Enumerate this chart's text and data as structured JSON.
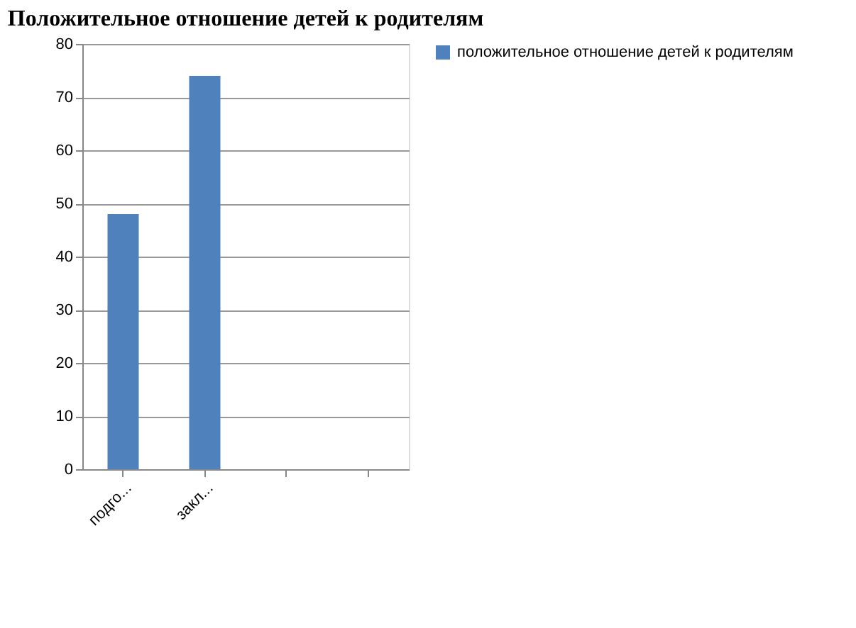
{
  "chart_data": {
    "type": "bar",
    "title": "Положительное отношение детей к родителям",
    "categories": [
      "подго...",
      "закл...",
      null,
      null
    ],
    "series": [
      {
        "name": "положительное отношение детей к родителям",
        "color": "#4f81bd",
        "values": [
          48,
          74,
          null,
          null
        ]
      }
    ],
    "ylim": [
      0,
      80
    ],
    "yticks": [
      0,
      10,
      20,
      30,
      40,
      50,
      60,
      70,
      80
    ],
    "grid": "y",
    "legend": "right"
  }
}
